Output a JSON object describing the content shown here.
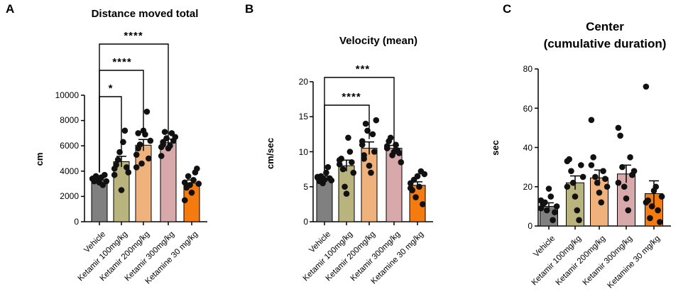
{
  "colors": {
    "vehicle": "#808080",
    "ketamir_100": "#b9b47d",
    "ketamir_200": "#f0b27c",
    "ketamir_300": "#d8a9aa",
    "ketamine_30": "#f57a10",
    "dot": "#111111",
    "axis": "#000000"
  },
  "chart_data": [
    {
      "type": "bar",
      "panel": "A",
      "title": "Distance moved total",
      "ylabel": "cm",
      "xlabel": "",
      "ylim": [
        0,
        10000
      ],
      "yticks": [
        0,
        2000,
        4000,
        6000,
        8000,
        10000
      ],
      "categories": [
        "Vehicle",
        "Ketamir 100mg/kg",
        "Ketamir 200mg/kg",
        "Ketamir 300mg/kg",
        "Ketamine 30 mg/kg"
      ],
      "values": [
        3300,
        4750,
        6050,
        6250,
        3050
      ],
      "errors": [
        150,
        420,
        450,
        280,
        250
      ],
      "points": [
        [
          3400,
          3200,
          3600,
          3300,
          3100,
          3500,
          2900,
          3700,
          3200,
          3400
        ],
        [
          3700,
          4500,
          4900,
          5500,
          2500,
          6300,
          7200,
          4300,
          3900,
          4200
        ],
        [
          5300,
          5800,
          6100,
          4600,
          7200,
          6900,
          8700,
          5000,
          6400,
          4300,
          7000
        ],
        [
          5900,
          6300,
          7100,
          6600,
          5800,
          6000,
          7000,
          6400,
          6700,
          5200,
          6100
        ],
        [
          3100,
          2700,
          3600,
          2900,
          2300,
          3300,
          3900,
          4200,
          3000,
          1700
        ]
      ],
      "comparisons": [
        {
          "from": 0,
          "to": 1,
          "label": "*"
        },
        {
          "from": 0,
          "to": 2,
          "label": "****"
        },
        {
          "from": 0,
          "to": 3,
          "label": "****"
        }
      ]
    },
    {
      "type": "bar",
      "panel": "B",
      "title": "Velocity (mean)",
      "ylabel": "cm/sec",
      "xlabel": "",
      "ylim": [
        0,
        20
      ],
      "yticks": [
        0,
        5,
        10,
        15,
        20
      ],
      "categories": [
        "Vehicle",
        "Ketamir 100mg/kg",
        "Ketamir 200mg/kg",
        "Ketamir 300mg/kg",
        "Ketamine 30 mg/kg"
      ],
      "values": [
        6.1,
        8.0,
        10.5,
        10.5,
        5.2
      ],
      "errors": [
        0.4,
        0.8,
        0.9,
        0.4,
        0.5
      ],
      "points": [
        [
          6.3,
          5.8,
          6.5,
          5.5,
          6.0,
          7.0,
          7.8,
          6.2,
          5.9,
          6.4
        ],
        [
          8.2,
          9.0,
          7.5,
          5.0,
          4.0,
          12.0,
          10.0,
          8.5,
          7.0,
          8.8
        ],
        [
          11.0,
          9.5,
          14.0,
          13.0,
          8.0,
          7.0,
          12.5,
          10.0,
          14.5,
          11.5,
          9.0
        ],
        [
          10.5,
          11.5,
          12.0,
          9.5,
          10.0,
          11.0,
          10.2,
          9.8,
          8.5,
          10.8
        ],
        [
          5.5,
          4.5,
          6.0,
          3.5,
          6.5,
          5.0,
          7.2,
          2.5,
          6.8,
          4.8
        ]
      ],
      "comparisons": [
        {
          "from": 0,
          "to": 2,
          "label": "****"
        },
        {
          "from": 0,
          "to": 3,
          "label": "***"
        }
      ]
    },
    {
      "type": "bar",
      "panel": "C",
      "title": "Center",
      "subtitle": "(cumulative duration)",
      "ylabel": "sec",
      "xlabel": "",
      "ylim": [
        0,
        80
      ],
      "yticks": [
        0,
        20,
        40,
        60,
        80
      ],
      "categories": [
        "Vehicle",
        "Ketamir 100mg/kg",
        "Ketamir 200mg/kg",
        "Ketamir 300mg/kg",
        "Ketamine 30 mg/kg"
      ],
      "values": [
        10,
        22,
        24.5,
        26.5,
        16.5
      ],
      "errors": [
        1.8,
        3.5,
        4.0,
        4.5,
        6.5
      ],
      "points": [
        [
          9,
          11,
          12,
          8,
          19,
          15,
          3,
          7,
          10,
          13
        ],
        [
          33,
          34,
          28,
          22,
          15,
          8,
          3,
          31,
          25,
          20
        ],
        [
          54,
          35,
          25,
          22,
          17,
          12,
          28,
          24,
          20,
          31
        ],
        [
          50,
          46,
          30,
          20,
          14,
          8,
          35,
          26,
          28,
          22
        ],
        [
          71,
          13,
          4,
          10,
          18,
          20,
          8,
          2,
          15,
          12
        ]
      ],
      "comparisons": []
    }
  ]
}
